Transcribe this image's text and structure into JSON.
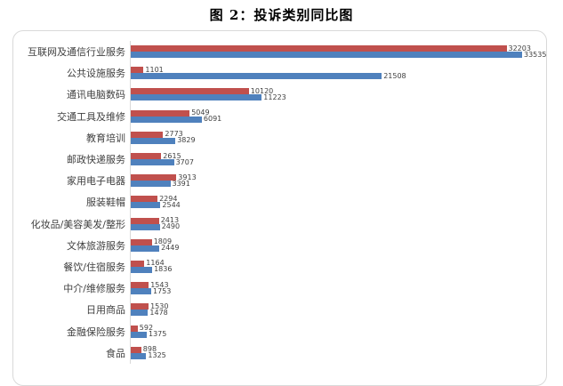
{
  "title": "图 2：投诉类别同比图",
  "colors": {
    "red_series": "#C0504D",
    "blue_series": "#4F81BD",
    "frame_border": "#D9D9D9",
    "axis_line": "#D9D9D9",
    "label_text": "#404040"
  },
  "chart_data": {
    "type": "bar",
    "orientation": "horizontal",
    "title": "图 2：投诉类别同比图",
    "categories": [
      "互联网及通信行业服务",
      "公共设施服务",
      "通讯电脑数码",
      "交通工具及维修",
      "教育培训",
      "邮政快递服务",
      "家用电子电器",
      "服装鞋帽",
      "化妆品/美容美发/整形",
      "文体旅游服务",
      "餐饮/住宿服务",
      "中介/维修服务",
      "日用商品",
      "金融保险服务",
      "食品"
    ],
    "series": [
      {
        "name": "red",
        "color": "#C0504D",
        "values": [
          32203,
          1101,
          10120,
          5049,
          2773,
          2615,
          3913,
          2294,
          2413,
          1809,
          1164,
          1543,
          1530,
          592,
          898
        ]
      },
      {
        "name": "blue",
        "color": "#4F81BD",
        "values": [
          33535,
          21508,
          11223,
          6091,
          3829,
          3707,
          3391,
          2544,
          2490,
          2449,
          1836,
          1753,
          1478,
          1375,
          1325
        ]
      }
    ],
    "xlim": [
      0,
      35000
    ],
    "grid": false,
    "legend": "none",
    "value_labels": true
  }
}
